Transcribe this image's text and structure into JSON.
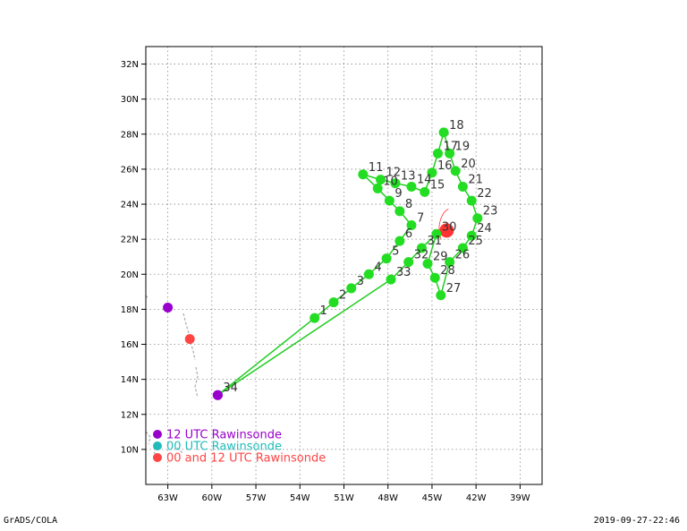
{
  "footer": {
    "left": "GrADS/COLA",
    "right": "2019-09-27-22:46"
  },
  "colors": {
    "track": "#22cc22",
    "track_point": "#22dd22",
    "rawinsonde_12": "#9900cc",
    "rawinsonde_00": "#22bbbb",
    "rawinsonde_both": "#ff4444",
    "center": "#ff3333",
    "coastline": "#aaaaaa"
  },
  "legend": [
    {
      "label": "12 UTC Rawinsonde",
      "color": "#9900cc"
    },
    {
      "label": "00 UTC Rawinsonde",
      "color": "#22bbbb"
    },
    {
      "label": "00 and 12 UTC Rawinsonde",
      "color": "#ff4444"
    }
  ],
  "chart_data": {
    "type": "scatter",
    "xlim": [
      -64.5,
      -37.5
    ],
    "ylim": [
      8.0,
      33.0
    ],
    "x_ticks": [
      {
        "value": -63,
        "label": "63W"
      },
      {
        "value": -60,
        "label": "60W"
      },
      {
        "value": -57,
        "label": "57W"
      },
      {
        "value": -54,
        "label": "54W"
      },
      {
        "value": -51,
        "label": "51W"
      },
      {
        "value": -48,
        "label": "48W"
      },
      {
        "value": -45,
        "label": "45W"
      },
      {
        "value": -42,
        "label": "42W"
      },
      {
        "value": -39,
        "label": "39W"
      }
    ],
    "y_ticks": [
      {
        "value": 10,
        "label": "10N"
      },
      {
        "value": 12,
        "label": "12N"
      },
      {
        "value": 14,
        "label": "14N"
      },
      {
        "value": 16,
        "label": "16N"
      },
      {
        "value": 18,
        "label": "18N"
      },
      {
        "value": 20,
        "label": "20N"
      },
      {
        "value": 22,
        "label": "22N"
      },
      {
        "value": 24,
        "label": "24N"
      },
      {
        "value": 26,
        "label": "26N"
      },
      {
        "value": 28,
        "label": "28N"
      },
      {
        "value": 30,
        "label": "30N"
      },
      {
        "value": 32,
        "label": "32N"
      }
    ],
    "grid": true,
    "track": [
      {
        "label": "1",
        "lon": -53.0,
        "lat": 17.5
      },
      {
        "label": "2",
        "lon": -51.7,
        "lat": 18.4
      },
      {
        "label": "3",
        "lon": -50.5,
        "lat": 19.2
      },
      {
        "label": "4",
        "lon": -49.3,
        "lat": 20.0
      },
      {
        "label": "5",
        "lon": -48.1,
        "lat": 20.9
      },
      {
        "label": "6",
        "lon": -47.2,
        "lat": 21.9
      },
      {
        "label": "7",
        "lon": -46.4,
        "lat": 22.8
      },
      {
        "label": "8",
        "lon": -47.2,
        "lat": 23.6
      },
      {
        "label": "9",
        "lon": -47.9,
        "lat": 24.2
      },
      {
        "label": "10",
        "lon": -48.7,
        "lat": 24.9
      },
      {
        "label": "11",
        "lon": -49.7,
        "lat": 25.7
      },
      {
        "label": "12",
        "lon": -48.5,
        "lat": 25.4
      },
      {
        "label": "13",
        "lon": -47.5,
        "lat": 25.2
      },
      {
        "label": "14",
        "lon": -46.4,
        "lat": 25.0
      },
      {
        "label": "15",
        "lon": -45.5,
        "lat": 24.7
      },
      {
        "label": "16",
        "lon": -45.0,
        "lat": 25.8
      },
      {
        "label": "17",
        "lon": -44.6,
        "lat": 26.9
      },
      {
        "label": "18",
        "lon": -44.2,
        "lat": 28.1
      },
      {
        "label": "19",
        "lon": -43.8,
        "lat": 26.9
      },
      {
        "label": "20",
        "lon": -43.4,
        "lat": 25.9
      },
      {
        "label": "21",
        "lon": -42.9,
        "lat": 25.0
      },
      {
        "label": "22",
        "lon": -42.3,
        "lat": 24.2
      },
      {
        "label": "23",
        "lon": -41.9,
        "lat": 23.2
      },
      {
        "label": "24",
        "lon": -42.3,
        "lat": 22.2
      },
      {
        "label": "25",
        "lon": -42.9,
        "lat": 21.5
      },
      {
        "label": "26",
        "lon": -43.8,
        "lat": 20.7
      },
      {
        "label": "27",
        "lon": -44.4,
        "lat": 18.8
      },
      {
        "label": "28",
        "lon": -44.8,
        "lat": 19.8
      },
      {
        "label": "29",
        "lon": -45.3,
        "lat": 20.6
      },
      {
        "label": "30",
        "lon": -44.7,
        "lat": 22.3
      },
      {
        "label": "31",
        "lon": -45.7,
        "lat": 21.5
      },
      {
        "label": "32",
        "lon": -46.6,
        "lat": 20.7
      },
      {
        "label": "33",
        "lon": -47.8,
        "lat": 19.7
      },
      {
        "label": "34",
        "lon": -59.6,
        "lat": 13.1
      }
    ],
    "center": {
      "lon": -44.0,
      "lat": 22.5
    },
    "rawinsonde_stations": [
      {
        "lon": -63.0,
        "lat": 18.1,
        "type": "12"
      },
      {
        "lon": -61.5,
        "lat": 16.3,
        "type": "both"
      },
      {
        "lon": -59.6,
        "lat": 13.1,
        "type": "12"
      }
    ]
  }
}
